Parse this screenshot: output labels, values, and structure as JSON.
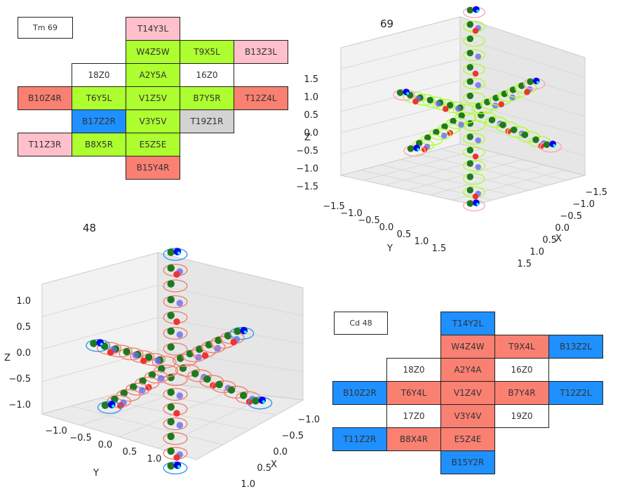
{
  "colors": {
    "green": "#adff2f",
    "red": "#fa8072",
    "pink": "#ffc0cb",
    "blue": "#1e90ff",
    "gray": "#d3d3d3",
    "white": "#ffffff"
  },
  "tm_grid": {
    "label": "Tm 69",
    "cells": [
      {
        "text": "T14Y3L",
        "r": 0,
        "c": 2,
        "color": "pink"
      },
      {
        "text": "W4Z5W",
        "r": 1,
        "c": 2,
        "color": "green"
      },
      {
        "text": "T9X5L",
        "r": 1,
        "c": 3,
        "color": "green"
      },
      {
        "text": "B13Z3L",
        "r": 1,
        "c": 4,
        "color": "pink"
      },
      {
        "text": "18Z0",
        "r": 2,
        "c": 1,
        "color": "white"
      },
      {
        "text": "A2Y5A",
        "r": 2,
        "c": 2,
        "color": "green"
      },
      {
        "text": "16Z0",
        "r": 2,
        "c": 3,
        "color": "white"
      },
      {
        "text": "B10Z4R",
        "r": 3,
        "c": 0,
        "color": "red"
      },
      {
        "text": "T6Y5L",
        "r": 3,
        "c": 1,
        "color": "green"
      },
      {
        "text": "V1Z5V",
        "r": 3,
        "c": 2,
        "color": "green"
      },
      {
        "text": "B7Y5R",
        "r": 3,
        "c": 3,
        "color": "green"
      },
      {
        "text": "T12Z4L",
        "r": 3,
        "c": 4,
        "color": "red"
      },
      {
        "text": "B17Z2R",
        "r": 4,
        "c": 1,
        "color": "blue"
      },
      {
        "text": "V3Y5V",
        "r": 4,
        "c": 2,
        "color": "green"
      },
      {
        "text": "T19Z1R",
        "r": 4,
        "c": 3,
        "color": "gray"
      },
      {
        "text": "T11Z3R",
        "r": 5,
        "c": 0,
        "color": "pink"
      },
      {
        "text": "B8X5R",
        "r": 5,
        "c": 1,
        "color": "green"
      },
      {
        "text": "E5Z5E",
        "r": 5,
        "c": 2,
        "color": "green"
      },
      {
        "text": "B15Y4R",
        "r": 6,
        "c": 2,
        "color": "red"
      }
    ]
  },
  "cd_grid": {
    "label": "Cd 48",
    "cells": [
      {
        "text": "T14Y2L",
        "r": 0,
        "c": 2,
        "color": "blue"
      },
      {
        "text": "W4Z4W",
        "r": 1,
        "c": 2,
        "color": "red"
      },
      {
        "text": "T9X4L",
        "r": 1,
        "c": 3,
        "color": "red"
      },
      {
        "text": "B13Z2L",
        "r": 1,
        "c": 4,
        "color": "blue"
      },
      {
        "text": "18Z0",
        "r": 2,
        "c": 1,
        "color": "white"
      },
      {
        "text": "A2Y4A",
        "r": 2,
        "c": 2,
        "color": "red"
      },
      {
        "text": "16Z0",
        "r": 2,
        "c": 3,
        "color": "white"
      },
      {
        "text": "B10Z2R",
        "r": 3,
        "c": 0,
        "color": "blue"
      },
      {
        "text": "T6Y4L",
        "r": 3,
        "c": 1,
        "color": "red"
      },
      {
        "text": "V1Z4V",
        "r": 3,
        "c": 2,
        "color": "red"
      },
      {
        "text": "B7Y4R",
        "r": 3,
        "c": 3,
        "color": "red"
      },
      {
        "text": "T12Z2L",
        "r": 3,
        "c": 4,
        "color": "blue"
      },
      {
        "text": "17Z0",
        "r": 4,
        "c": 1,
        "color": "white"
      },
      {
        "text": "V3Y4V",
        "r": 4,
        "c": 2,
        "color": "red"
      },
      {
        "text": "19Z0",
        "r": 4,
        "c": 3,
        "color": "white"
      },
      {
        "text": "T11Z2R",
        "r": 5,
        "c": 0,
        "color": "blue"
      },
      {
        "text": "B8X4R",
        "r": 5,
        "c": 1,
        "color": "red"
      },
      {
        "text": "E5Z4E",
        "r": 5,
        "c": 2,
        "color": "red"
      },
      {
        "text": "B15Y2R",
        "r": 6,
        "c": 2,
        "color": "blue"
      }
    ]
  },
  "plot69": {
    "title": "69",
    "z_label": "Z",
    "y_label": "Y",
    "x_label": "X",
    "z_ticks": [
      "1.5",
      "1.0",
      "0.5",
      "0.0",
      "−0.5",
      "−1.0",
      "−1.5"
    ],
    "y_ticks": [
      "−1.5",
      "−1.0",
      "−0.5",
      "0.0",
      "0.5",
      "1.0",
      "1.5"
    ],
    "x_ticks": [
      "−1.5",
      "−1.0",
      "−0.5",
      "0.0",
      "0.5",
      "1.0",
      "1.5"
    ]
  },
  "plot48": {
    "title": "48",
    "z_label": "Z",
    "y_label": "Y",
    "x_label": "X",
    "z_ticks": [
      "1.0",
      "0.5",
      "0.0",
      "−0.5",
      "−1.0"
    ],
    "y_ticks": [
      "−1.0",
      "−0.5",
      "0.0",
      "0.5",
      "1.0"
    ],
    "x_ticks": [
      "−1.0",
      "−0.5",
      "0.0",
      "0.5",
      "1.0"
    ]
  }
}
